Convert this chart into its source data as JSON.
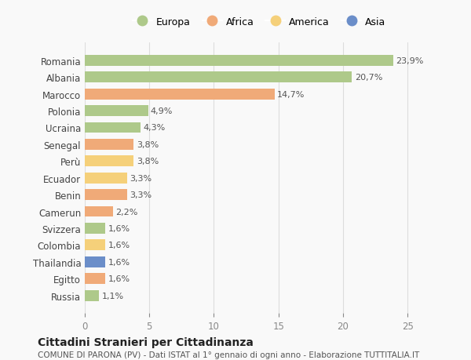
{
  "countries": [
    "Romania",
    "Albania",
    "Marocco",
    "Polonia",
    "Ucraina",
    "Senegal",
    "Perù",
    "Ecuador",
    "Benin",
    "Camerun",
    "Svizzera",
    "Colombia",
    "Thailandia",
    "Egitto",
    "Russia"
  ],
  "values": [
    23.9,
    20.7,
    14.7,
    4.9,
    4.3,
    3.8,
    3.8,
    3.3,
    3.3,
    2.2,
    1.6,
    1.6,
    1.6,
    1.6,
    1.1
  ],
  "labels": [
    "23,9%",
    "20,7%",
    "14,7%",
    "4,9%",
    "4,3%",
    "3,8%",
    "3,8%",
    "3,3%",
    "3,3%",
    "2,2%",
    "1,6%",
    "1,6%",
    "1,6%",
    "1,6%",
    "1,1%"
  ],
  "continents": [
    "Europa",
    "Europa",
    "Africa",
    "Europa",
    "Europa",
    "Africa",
    "America",
    "America",
    "Africa",
    "Africa",
    "Europa",
    "America",
    "Asia",
    "Africa",
    "Europa"
  ],
  "colors": {
    "Europa": "#aec98a",
    "Africa": "#f0aa78",
    "America": "#f5d07a",
    "Asia": "#6b8ec9"
  },
  "legend_order": [
    "Europa",
    "Africa",
    "America",
    "Asia"
  ],
  "title": "Cittadini Stranieri per Cittadinanza",
  "subtitle": "COMUNE DI PARONA (PV) - Dati ISTAT al 1° gennaio di ogni anno - Elaborazione TUTTITALIA.IT",
  "xlim": [
    0,
    27
  ],
  "xticks": [
    0,
    5,
    10,
    15,
    20,
    25
  ],
  "background_color": "#f9f9f9",
  "grid_color": "#dddddd",
  "bar_height": 0.65
}
